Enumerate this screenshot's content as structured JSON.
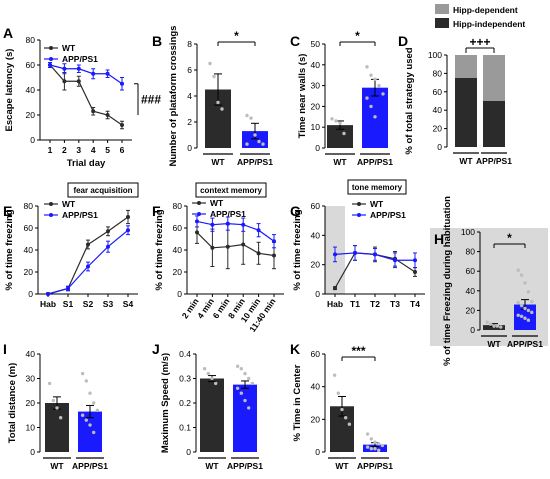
{
  "colors": {
    "wt": "#2b2b2b",
    "app": "#1a1aff",
    "hipp_dep": "#9a9a9a",
    "hipp_indep": "#2b2b2b"
  },
  "chart_data": [
    {
      "panel": "A",
      "type": "line",
      "x": [
        1,
        2,
        3,
        4,
        5,
        6
      ],
      "xlabel": "Trial day",
      "ylabel": "Escape latency (s)",
      "ylim": [
        0,
        80
      ],
      "yticks": [
        0,
        20,
        40,
        60,
        80
      ],
      "threshold": 20,
      "series": [
        {
          "name": "WT",
          "values": [
            60,
            47,
            47,
            23,
            20,
            12
          ],
          "err": [
            2,
            7,
            4,
            3,
            3,
            3
          ]
        },
        {
          "name": "APP/PS1",
          "values": [
            60,
            57,
            57,
            53,
            53,
            45
          ],
          "err": [
            2,
            4,
            3,
            4,
            3,
            5
          ]
        }
      ],
      "annotations": [
        "###"
      ]
    },
    {
      "panel": "B",
      "type": "bar",
      "categories": [
        "WT",
        "APP/PS1"
      ],
      "values": [
        4.5,
        1.3
      ],
      "err": [
        1.2,
        0.6
      ],
      "points": [
        [
          6.5,
          5.5,
          3.5,
          3.0
        ],
        [
          2.5,
          2.3,
          1.0,
          0.5,
          0.3,
          0.3
        ]
      ],
      "ylabel": "Number of plataform crossings",
      "ylim": [
        0,
        8
      ],
      "yticks": [
        0,
        2,
        4,
        6,
        8
      ],
      "annotations": [
        "*"
      ]
    },
    {
      "panel": "C",
      "type": "bar",
      "categories": [
        "WT",
        "APP/PS1"
      ],
      "values": [
        11,
        29
      ],
      "err": [
        2,
        4
      ],
      "points": [
        [
          14,
          13,
          12,
          7
        ],
        [
          39,
          35,
          33,
          30,
          26,
          24,
          20,
          15
        ]
      ],
      "ylabel": "Time near walls (s)",
      "ylim": [
        0,
        50
      ],
      "yticks": [
        0,
        10,
        20,
        30,
        40,
        50
      ],
      "annotations": [
        "*"
      ]
    },
    {
      "panel": "D",
      "type": "bar",
      "categories": [
        "WT",
        "APP/PS1"
      ],
      "series": [
        {
          "name": "Hipp-independent",
          "values": [
            75,
            50
          ]
        },
        {
          "name": "Hipp-dependent",
          "values": [
            25,
            50
          ]
        }
      ],
      "ylabel": "% of total strategy used",
      "ylim": [
        0,
        100
      ],
      "yticks": [
        0,
        20,
        40,
        60,
        80,
        100
      ],
      "annotations": [
        "+++"
      ]
    },
    {
      "panel": "E",
      "type": "line",
      "title": "fear acquisition",
      "categories": [
        "Hab",
        "S1",
        "S2",
        "S3",
        "S4"
      ],
      "ylabel": "% of time freezing",
      "ylim": [
        0,
        80
      ],
      "yticks": [
        0,
        20,
        40,
        60,
        80
      ],
      "series": [
        {
          "name": "WT",
          "values": [
            0,
            5,
            45,
            57,
            70
          ],
          "err": [
            1,
            2,
            4,
            4,
            6
          ]
        },
        {
          "name": "APP/PS1",
          "values": [
            0,
            5,
            25,
            43,
            58
          ],
          "err": [
            1,
            2,
            4,
            5,
            4
          ]
        }
      ]
    },
    {
      "panel": "F",
      "type": "line",
      "title": "context memory",
      "categories": [
        "2 min",
        "4 min",
        "6 min",
        "8 min",
        "10 min",
        "11:40 min"
      ],
      "ylabel": "% of time freezing",
      "ylim": [
        0,
        80
      ],
      "yticks": [
        0,
        20,
        40,
        60,
        80
      ],
      "series": [
        {
          "name": "WT",
          "values": [
            56,
            42,
            43,
            45,
            37,
            35
          ],
          "err": [
            10,
            17,
            20,
            18,
            10,
            12
          ]
        },
        {
          "name": "APP/PS1",
          "values": [
            66,
            63,
            64,
            63,
            58,
            48
          ],
          "err": [
            5,
            6,
            6,
            6,
            6,
            6
          ]
        }
      ]
    },
    {
      "panel": "G",
      "type": "line",
      "title": "tone memory",
      "categories": [
        "Hab",
        "T1",
        "T2",
        "T3",
        "T4"
      ],
      "ylabel": "% of time freezing",
      "ylim": [
        0,
        60
      ],
      "yticks": [
        0,
        20,
        40,
        60
      ],
      "series": [
        {
          "name": "WT",
          "values": [
            4,
            28,
            27,
            24,
            15
          ],
          "err": [
            1,
            5,
            5,
            5,
            3
          ]
        },
        {
          "name": "APP/PS1",
          "values": [
            27,
            28,
            27,
            23,
            23
          ],
          "err": [
            5,
            5,
            4,
            5,
            5
          ]
        }
      ]
    },
    {
      "panel": "H",
      "type": "bar",
      "categories": [
        "WT",
        "APP/PS1"
      ],
      "values": [
        5,
        26
      ],
      "err": [
        1.5,
        5
      ],
      "points": [
        [
          8,
          6,
          4,
          4,
          3
        ],
        [
          61,
          56,
          48,
          39,
          29,
          28,
          25,
          22,
          20,
          18,
          15,
          14,
          12,
          10
        ]
      ],
      "ylabel": "% of time Freezing during habituation",
      "ylim": [
        0,
        100
      ],
      "yticks": [
        0,
        20,
        40,
        60,
        80,
        100
      ],
      "annotations": [
        "*"
      ]
    },
    {
      "panel": "I",
      "type": "bar",
      "categories": [
        "WT",
        "APP/PS1"
      ],
      "values": [
        20,
        16.5
      ],
      "err": [
        2.5,
        2.5
      ],
      "points": [
        [
          28,
          21,
          18,
          14
        ],
        [
          32,
          29,
          24,
          20,
          17,
          15,
          13,
          11,
          8
        ]
      ],
      "ylabel": "Total distance (m)",
      "ylim": [
        0,
        40
      ],
      "yticks": [
        0,
        10,
        20,
        30,
        40
      ]
    },
    {
      "panel": "J",
      "type": "bar",
      "categories": [
        "WT",
        "APP/PS1"
      ],
      "values": [
        0.3,
        0.275
      ],
      "err": [
        0.012,
        0.015
      ],
      "points": [
        [
          0.34,
          0.32,
          0.3,
          0.28
        ],
        [
          0.35,
          0.34,
          0.32,
          0.3,
          0.28,
          0.26,
          0.24,
          0.21,
          0.18
        ]
      ],
      "ylabel": "Maximum Speed (m/s)",
      "ylim": [
        0,
        0.4
      ],
      "yticks": [
        0,
        0.1,
        0.2,
        0.3,
        0.4
      ]
    },
    {
      "panel": "K",
      "type": "bar",
      "categories": [
        "WT",
        "APP/PS1"
      ],
      "values": [
        28,
        4.5
      ],
      "err": [
        6,
        1.2
      ],
      "points": [
        [
          47,
          36,
          26,
          21,
          17
        ],
        [
          11,
          8,
          6,
          5,
          4,
          3,
          2,
          2,
          1
        ]
      ],
      "ylabel": "% Time in Center",
      "ylim": [
        0,
        60
      ],
      "yticks": [
        0,
        20,
        40,
        60
      ],
      "annotations": [
        "***"
      ]
    }
  ]
}
